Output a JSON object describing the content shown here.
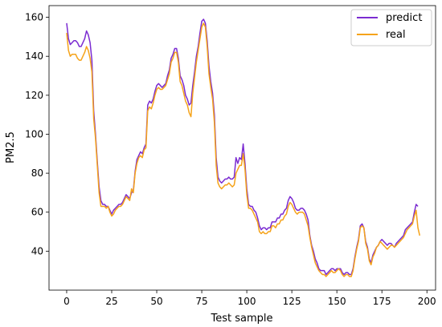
{
  "chart_data": {
    "type": "line",
    "xlabel": "Test sample",
    "ylabel": "PM2.5",
    "xlim": [
      -9.8,
      204.8
    ],
    "ylim": [
      20,
      166
    ],
    "xticks": [
      0,
      25,
      50,
      75,
      100,
      125,
      150,
      175,
      200
    ],
    "yticks": [
      40,
      60,
      80,
      100,
      120,
      140,
      160
    ],
    "grid": false,
    "legend_position": "top-right",
    "series": [
      {
        "name": "predict",
        "color": "#7b2cd1",
        "x": [
          0,
          1,
          2,
          3,
          4,
          5,
          6,
          7,
          8,
          9,
          10,
          11,
          12,
          13,
          14,
          15,
          16,
          17,
          18,
          19,
          20,
          21,
          22,
          23,
          24,
          25,
          26,
          27,
          28,
          29,
          30,
          31,
          32,
          33,
          34,
          35,
          36,
          37,
          38,
          39,
          40,
          41,
          42,
          43,
          44,
          45,
          46,
          47,
          48,
          49,
          50,
          51,
          52,
          53,
          54,
          55,
          56,
          57,
          58,
          59,
          60,
          61,
          62,
          63,
          64,
          65,
          66,
          67,
          68,
          69,
          70,
          71,
          72,
          73,
          74,
          75,
          76,
          77,
          78,
          79,
          80,
          81,
          82,
          83,
          84,
          85,
          86,
          87,
          88,
          89,
          90,
          91,
          92,
          93,
          94,
          95,
          96,
          97,
          98,
          99,
          100,
          101,
          102,
          103,
          104,
          105,
          106,
          107,
          108,
          109,
          110,
          111,
          112,
          113,
          114,
          115,
          116,
          117,
          118,
          119,
          120,
          121,
          122,
          123,
          124,
          125,
          126,
          127,
          128,
          129,
          130,
          131,
          132,
          133,
          134,
          135,
          136,
          137,
          138,
          139,
          140,
          141,
          142,
          143,
          144,
          145,
          146,
          147,
          148,
          149,
          150,
          151,
          152,
          153,
          154,
          155,
          156,
          157,
          158,
          159,
          160,
          161,
          162,
          163,
          164,
          165,
          166,
          167,
          168,
          169,
          170,
          171,
          172,
          173,
          174,
          175,
          176,
          177,
          178,
          179,
          180,
          181,
          182,
          183,
          184,
          185,
          186,
          187,
          188,
          189,
          190,
          191,
          192,
          193,
          194,
          195
        ],
        "y": [
          157,
          149,
          146,
          147,
          148,
          148,
          147,
          145,
          145,
          147,
          149,
          153,
          151,
          147,
          138,
          112,
          100,
          86,
          73,
          66,
          64,
          64,
          63,
          63,
          61,
          59,
          61,
          62,
          63,
          64,
          64,
          65,
          67,
          69,
          68,
          67,
          70,
          71,
          81,
          87,
          89,
          91,
          90,
          93,
          95,
          115,
          117,
          116,
          118,
          122,
          125,
          126,
          125,
          124,
          125,
          126,
          130,
          133,
          139,
          141,
          144,
          144,
          139,
          130,
          128,
          125,
          120,
          118,
          115,
          116,
          125,
          132,
          140,
          145,
          152,
          158,
          159,
          157,
          148,
          135,
          127,
          121,
          110,
          88,
          78,
          76,
          75,
          76,
          77,
          77,
          78,
          77,
          77,
          78,
          88,
          85,
          88,
          87,
          95,
          85,
          72,
          64,
          63,
          63,
          61,
          60,
          57,
          53,
          51,
          52,
          52,
          51,
          52,
          52,
          55,
          55,
          55,
          57,
          57,
          59,
          59,
          61,
          62,
          66,
          68,
          67,
          65,
          62,
          61,
          61,
          62,
          62,
          61,
          59,
          56,
          48,
          43,
          40,
          36,
          34,
          31,
          30,
          30,
          30,
          28,
          29,
          30,
          31,
          31,
          30,
          31,
          31,
          31,
          29,
          28,
          29,
          29,
          28,
          28,
          31,
          37,
          42,
          46,
          53,
          54,
          52,
          45,
          42,
          36,
          34,
          38,
          40,
          42,
          43,
          45,
          46,
          45,
          44,
          43,
          44,
          44,
          43,
          42,
          44,
          45,
          46,
          47,
          48,
          51,
          52,
          53,
          54,
          55,
          60,
          64,
          63
        ]
      },
      {
        "name": "real",
        "color": "#f5a31a",
        "x": [
          0,
          1,
          2,
          3,
          4,
          5,
          6,
          7,
          8,
          9,
          10,
          11,
          12,
          13,
          14,
          15,
          16,
          17,
          18,
          19,
          20,
          21,
          22,
          23,
          24,
          25,
          26,
          27,
          28,
          29,
          30,
          31,
          32,
          33,
          34,
          35,
          36,
          37,
          38,
          39,
          40,
          41,
          42,
          43,
          44,
          45,
          46,
          47,
          48,
          49,
          50,
          51,
          52,
          53,
          54,
          55,
          56,
          57,
          58,
          59,
          60,
          61,
          62,
          63,
          64,
          65,
          66,
          67,
          68,
          69,
          70,
          71,
          72,
          73,
          74,
          75,
          76,
          77,
          78,
          79,
          80,
          81,
          82,
          83,
          84,
          85,
          86,
          87,
          88,
          89,
          90,
          91,
          92,
          93,
          94,
          95,
          96,
          97,
          98,
          99,
          100,
          101,
          102,
          103,
          104,
          105,
          106,
          107,
          108,
          109,
          110,
          111,
          112,
          113,
          114,
          115,
          116,
          117,
          118,
          119,
          120,
          121,
          122,
          123,
          124,
          125,
          126,
          127,
          128,
          129,
          130,
          131,
          132,
          133,
          134,
          135,
          136,
          137,
          138,
          139,
          140,
          141,
          142,
          143,
          144,
          145,
          146,
          147,
          148,
          149,
          150,
          151,
          152,
          153,
          154,
          155,
          156,
          157,
          158,
          159,
          160,
          161,
          162,
          163,
          164,
          165,
          166,
          167,
          168,
          169,
          170,
          171,
          172,
          173,
          174,
          175,
          176,
          177,
          178,
          179,
          180,
          181,
          182,
          183,
          184,
          185,
          186,
          187,
          188,
          189,
          190,
          191,
          192,
          193,
          194,
          195,
          196
        ],
        "y": [
          152,
          143,
          140,
          141,
          141,
          141,
          139,
          138,
          138,
          140,
          142,
          145,
          143,
          139,
          132,
          108,
          98,
          84,
          70,
          63,
          63,
          63,
          62,
          63,
          60,
          58,
          59,
          61,
          62,
          63,
          63,
          64,
          66,
          68,
          67,
          66,
          72,
          70,
          80,
          85,
          88,
          89,
          88,
          92,
          93,
          112,
          114,
          113,
          116,
          120,
          123,
          124,
          123,
          123,
          124,
          125,
          128,
          131,
          137,
          139,
          142,
          142,
          137,
          127,
          125,
          121,
          117,
          115,
          111,
          109,
          121,
          129,
          137,
          143,
          149,
          155,
          157,
          155,
          145,
          131,
          124,
          118,
          106,
          84,
          75,
          73,
          72,
          73,
          74,
          74,
          75,
          74,
          73,
          74,
          80,
          82,
          84,
          84,
          90,
          82,
          69,
          62,
          62,
          61,
          59,
          57,
          55,
          50,
          49,
          50,
          49,
          49,
          50,
          50,
          53,
          53,
          52,
          54,
          54,
          56,
          56,
          58,
          59,
          63,
          65,
          64,
          62,
          60,
          59,
          60,
          60,
          60,
          59,
          56,
          53,
          47,
          42,
          38,
          34,
          32,
          30,
          29,
          28,
          28,
          27,
          28,
          29,
          30,
          29,
          29,
          30,
          31,
          30,
          28,
          27,
          28,
          28,
          27,
          27,
          30,
          36,
          41,
          45,
          52,
          53,
          52,
          44,
          41,
          35,
          33,
          37,
          39,
          42,
          43,
          45,
          44,
          43,
          42,
          41,
          42,
          43,
          43,
          42,
          43,
          44,
          45,
          46,
          47,
          49,
          51,
          52,
          53,
          54,
          58,
          61,
          52,
          48
        ]
      }
    ]
  }
}
